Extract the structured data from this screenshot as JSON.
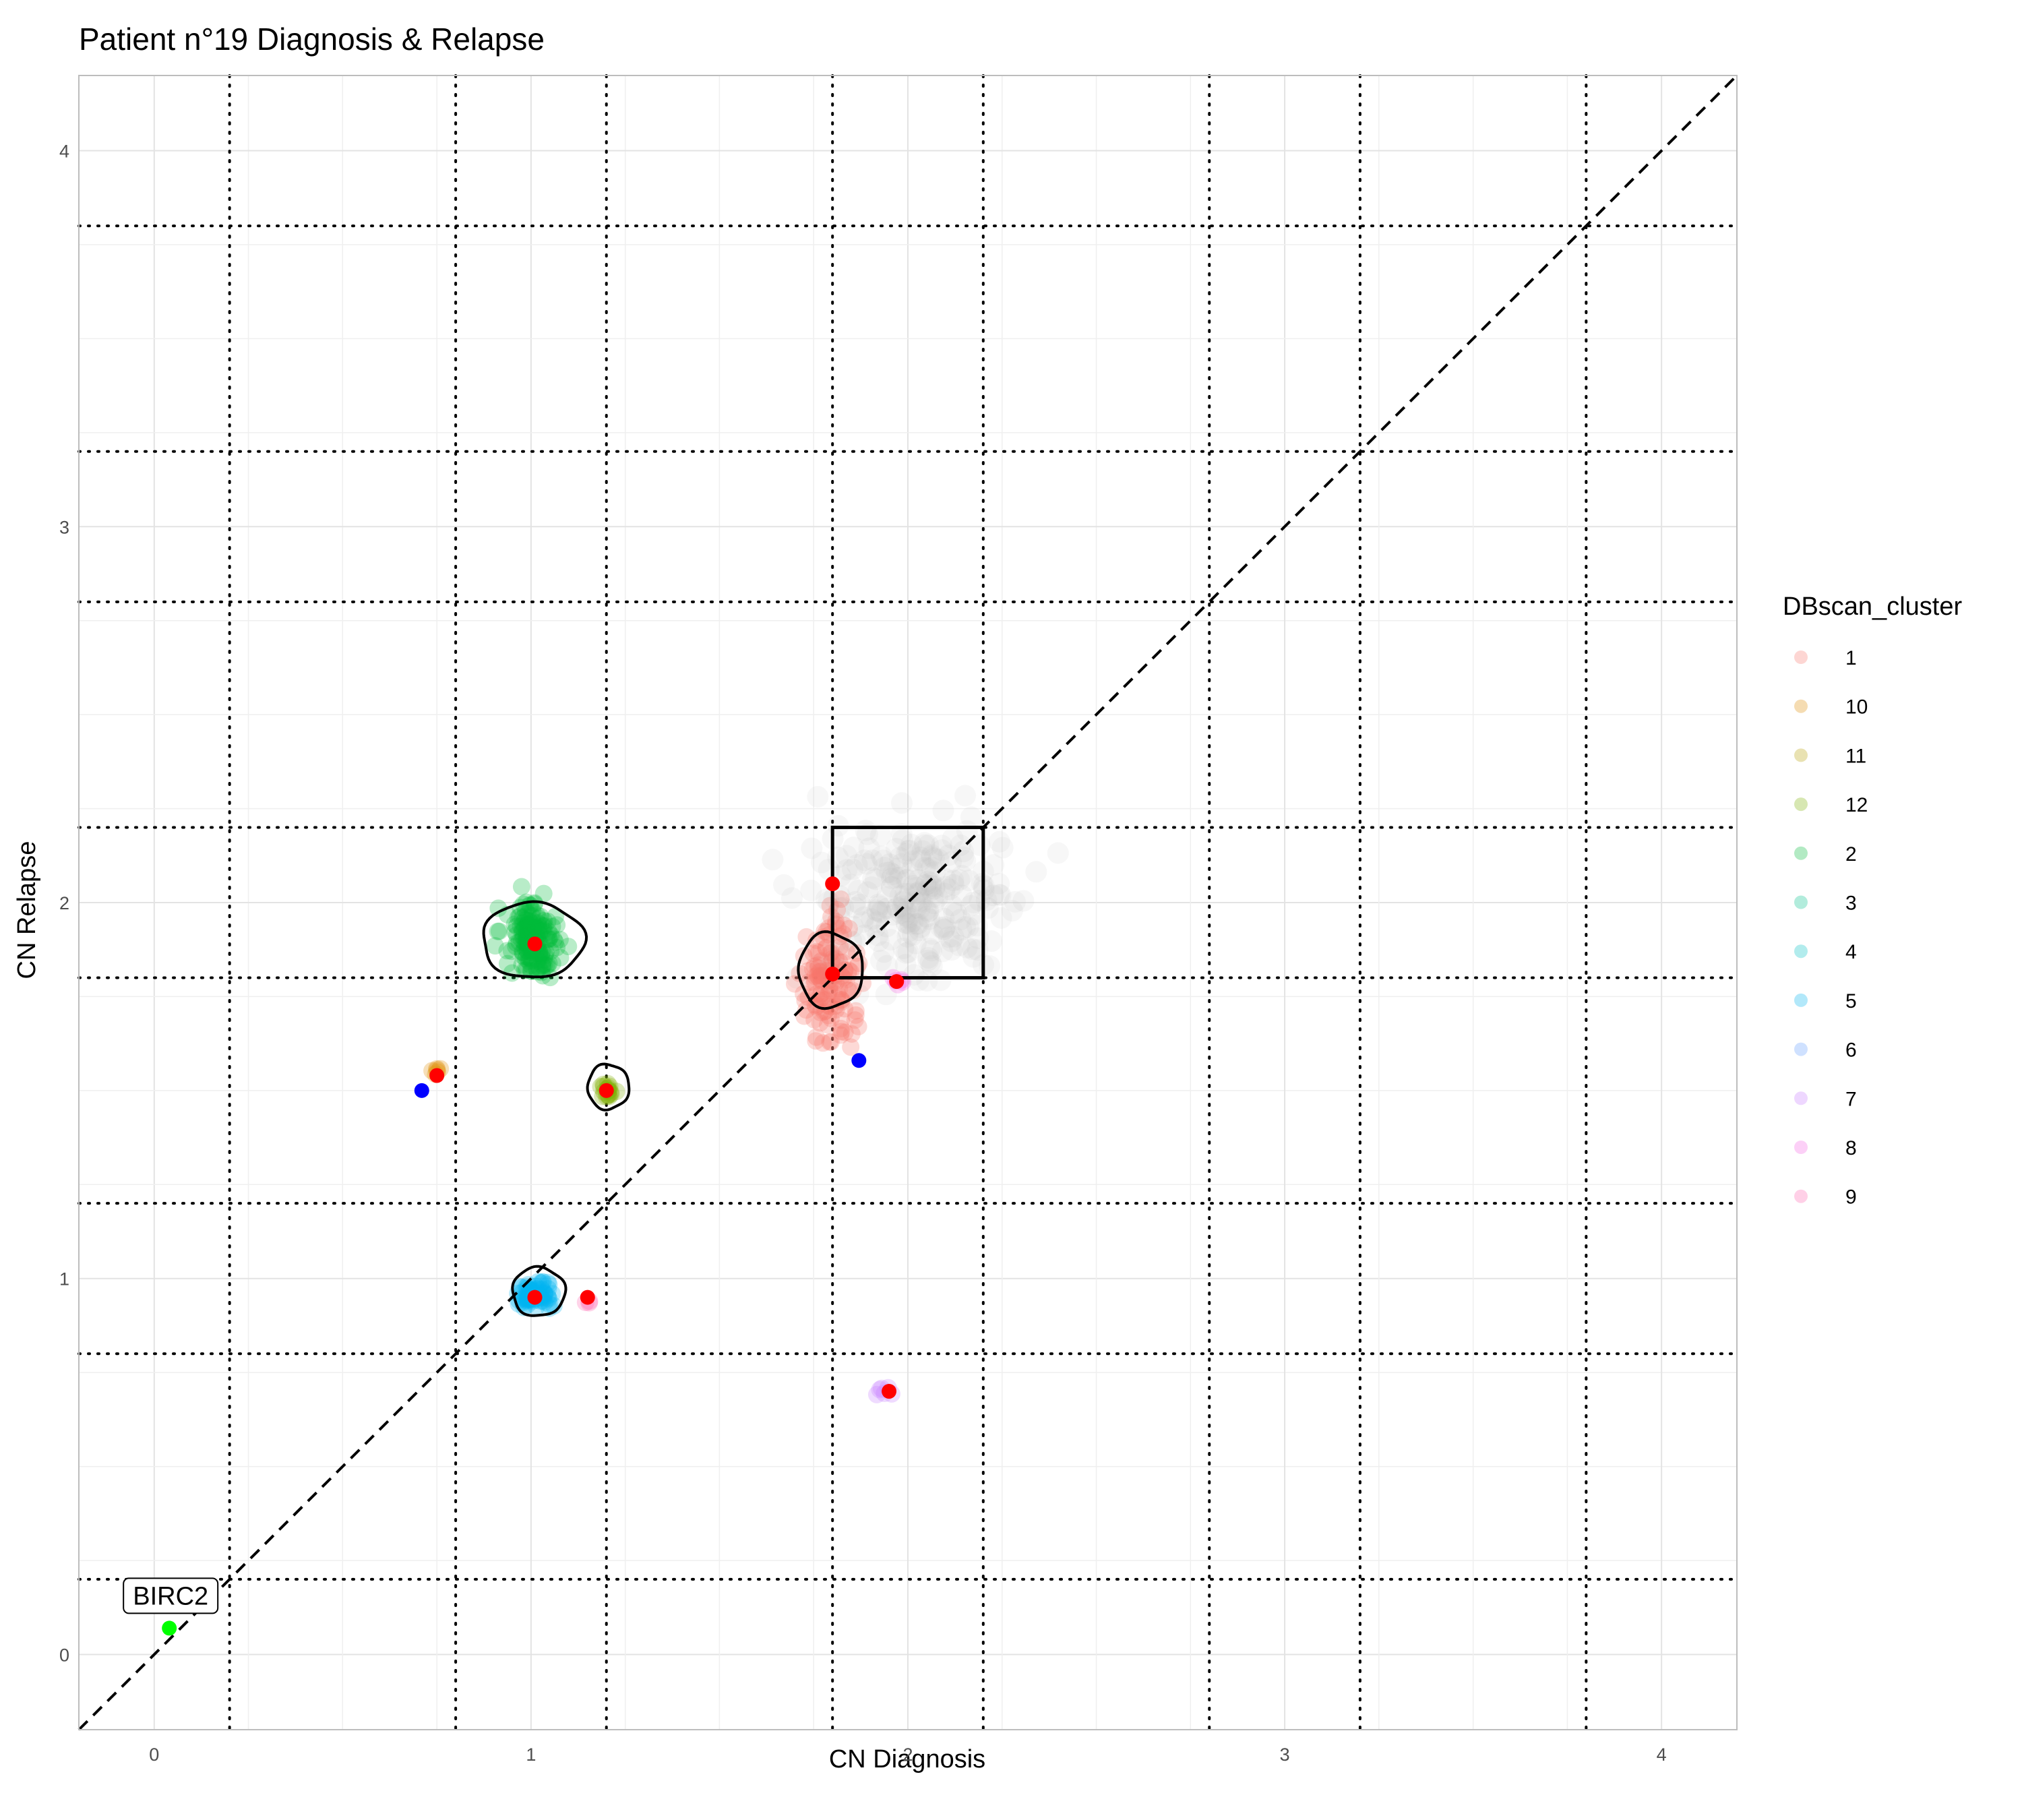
{
  "chart_data": {
    "type": "scatter",
    "title": "Patient n°19 Diagnosis & Relapse",
    "xlabel": "CN Diagnosis",
    "ylabel": "CN Relapse",
    "xlim": [
      -0.2,
      4.2
    ],
    "ylim": [
      -0.2,
      4.2
    ],
    "x_ticks": [
      "0",
      "1",
      "2",
      "3",
      "4"
    ],
    "y_ticks": [
      "0",
      "1",
      "2",
      "3",
      "4"
    ],
    "grid": true,
    "diagonal_reference_line": {
      "from": [
        -0.2,
        -0.2
      ],
      "to": [
        4.2,
        4.2
      ],
      "style": "dashed"
    },
    "dotted_vertical_lines": [
      0.2,
      0.8,
      1.2,
      1.8,
      2.2,
      2.8,
      3.2,
      3.8
    ],
    "dotted_horizontal_lines": [
      0.2,
      0.8,
      1.2,
      1.8,
      2.2,
      2.8,
      3.2,
      3.8
    ],
    "highlight_box": {
      "x": [
        1.8,
        2.2
      ],
      "y": [
        1.8,
        2.2
      ]
    },
    "legend": {
      "title": "DBscan_cluster",
      "position": "right",
      "entries": [
        {
          "label": "1",
          "color": "#F8766D"
        },
        {
          "label": "10",
          "color": "#DE8C00"
        },
        {
          "label": "11",
          "color": "#B79F00"
        },
        {
          "label": "12",
          "color": "#7CAE00"
        },
        {
          "label": "2",
          "color": "#00BA38"
        },
        {
          "label": "3",
          "color": "#00C08B"
        },
        {
          "label": "4",
          "color": "#00BFC4"
        },
        {
          "label": "5",
          "color": "#00B4F0"
        },
        {
          "label": "6",
          "color": "#619CFF"
        },
        {
          "label": "7",
          "color": "#C77CFF"
        },
        {
          "label": "8",
          "color": "#F564E3"
        },
        {
          "label": "9",
          "color": "#FF64B0"
        }
      ]
    },
    "clusters": [
      {
        "name": "noise",
        "color": "#BEBEBE",
        "x": [
          1.97,
          2.05
        ],
        "y": [
          1.97,
          2.05
        ],
        "spread": [
          0.12,
          0.1
        ],
        "count": 260
      },
      {
        "name": "1",
        "color": "#F8766D",
        "x": [
          1.78,
          1.82
        ],
        "y": [
          1.78,
          1.82
        ],
        "spread": [
          0.035,
          0.08
        ],
        "count": 130
      },
      {
        "name": "2",
        "color": "#00BA38",
        "x": [
          1.0
        ],
        "y": [
          1.9
        ],
        "spread": [
          0.035,
          0.05
        ],
        "count": 160
      },
      {
        "name": "5",
        "color": "#00B4F0",
        "x": [
          1.01
        ],
        "y": [
          0.96
        ],
        "spread": [
          0.025,
          0.018
        ],
        "count": 70
      },
      {
        "name": "12",
        "color": "#7CAE00",
        "x": [
          1.2
        ],
        "y": [
          1.5
        ],
        "spread": [
          0.012,
          0.012
        ],
        "count": 18
      },
      {
        "name": "10",
        "color": "#DE8C00",
        "x": [
          0.75
        ],
        "y": [
          1.55
        ],
        "spread": [
          0.008,
          0.008
        ],
        "count": 6
      },
      {
        "name": "7",
        "color": "#C77CFF",
        "x": [
          1.94
        ],
        "y": [
          0.7
        ],
        "spread": [
          0.015,
          0.006
        ],
        "count": 6
      },
      {
        "name": "8",
        "color": "#F564E3",
        "x": [
          1.98
        ],
        "y": [
          1.79
        ],
        "spread": [
          0.01,
          0.005
        ],
        "count": 5
      },
      {
        "name": "9",
        "color": "#FF64B0",
        "x": [
          1.15
        ],
        "y": [
          0.94
        ],
        "spread": [
          0.005,
          0.004
        ],
        "count": 3
      }
    ],
    "contours": [
      {
        "cluster": "2",
        "x": [
          0.87,
          1.14
        ],
        "y": [
          1.8,
          2.0
        ]
      },
      {
        "cluster": "5",
        "x": [
          0.95,
          1.09
        ],
        "y": [
          0.9,
          1.03
        ]
      },
      {
        "cluster": "12",
        "x": [
          1.15,
          1.26
        ],
        "y": [
          1.45,
          1.57
        ]
      },
      {
        "cluster": "1",
        "x": [
          1.71,
          1.88
        ],
        "y": [
          1.72,
          1.92
        ]
      }
    ],
    "centroids": {
      "color": "#FF0000",
      "points": [
        [
          1.8,
          2.05
        ],
        [
          1.01,
          1.89
        ],
        [
          1.8,
          1.81
        ],
        [
          1.97,
          1.79
        ],
        [
          0.75,
          1.54
        ],
        [
          1.2,
          1.5
        ],
        [
          1.01,
          0.95
        ],
        [
          1.15,
          0.95
        ],
        [
          1.95,
          0.7
        ]
      ]
    },
    "blue_points": {
      "color": "#0000FF",
      "points": [
        [
          0.71,
          1.5
        ],
        [
          1.87,
          1.58
        ]
      ]
    },
    "annotation": {
      "label": "BIRC2",
      "point": [
        0.04,
        0.07
      ],
      "point_color": "#00FF00"
    }
  }
}
